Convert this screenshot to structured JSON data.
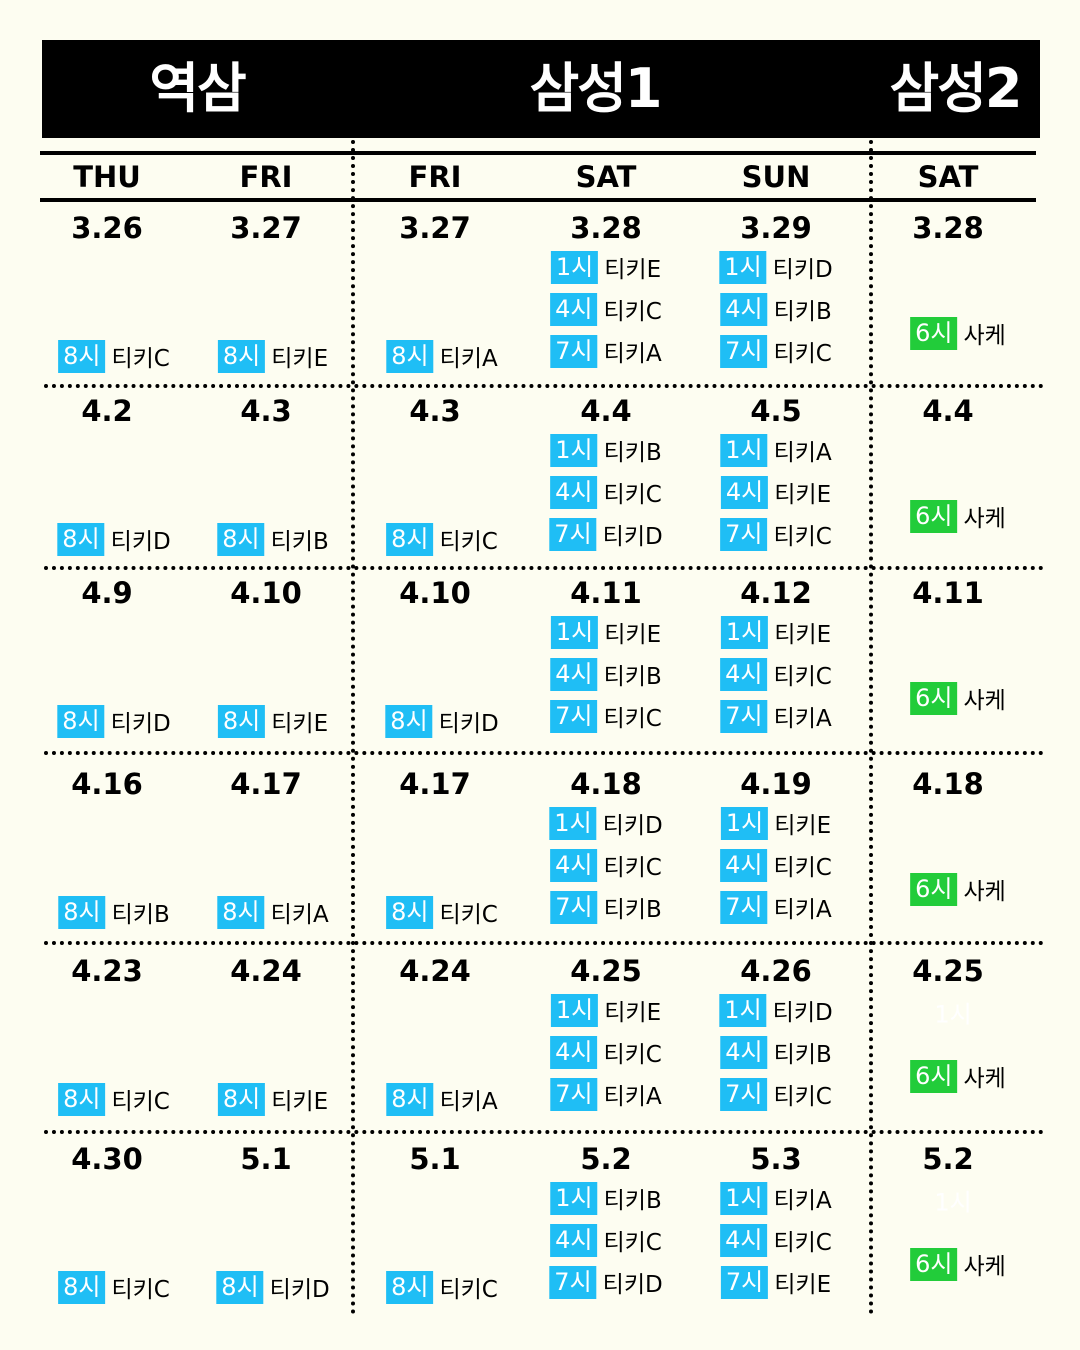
{
  "colors": {
    "badge_blue": "#1fbef5",
    "badge_green": "#22cc3a",
    "background": "#fdfdf1",
    "header": "#000000"
  },
  "venues": [
    "역삼",
    "삼성1",
    "삼성2"
  ],
  "days": [
    "THU",
    "FRI",
    "FRI",
    "SAT",
    "SUN",
    "SAT"
  ],
  "rows": [
    {
      "dates": [
        "3.26",
        "3.27",
        "3.27",
        "3.28",
        "3.29",
        "3.28"
      ],
      "slots": [
        [
          [
            "8시",
            "티키C"
          ]
        ],
        [
          [
            "8시",
            "티키E"
          ]
        ],
        [
          [
            "8시",
            "티키A"
          ]
        ],
        [
          [
            "1시",
            "티키E"
          ],
          [
            "4시",
            "티키C"
          ],
          [
            "7시",
            "티키A"
          ]
        ],
        [
          [
            "1시",
            "티키D"
          ],
          [
            "4시",
            "티키B"
          ],
          [
            "7시",
            "티키C"
          ]
        ],
        [
          [
            "6시",
            "사케"
          ]
        ]
      ]
    },
    {
      "dates": [
        "4.2",
        "4.3",
        "4.3",
        "4.4",
        "4.5",
        "4.4"
      ],
      "slots": [
        [
          [
            "8시",
            "티키D"
          ]
        ],
        [
          [
            "8시",
            "티키B"
          ]
        ],
        [
          [
            "8시",
            "티키C"
          ]
        ],
        [
          [
            "1시",
            "티키B"
          ],
          [
            "4시",
            "티키C"
          ],
          [
            "7시",
            "티키D"
          ]
        ],
        [
          [
            "1시",
            "티키A"
          ],
          [
            "4시",
            "티키E"
          ],
          [
            "7시",
            "티키C"
          ]
        ],
        [
          [
            "6시",
            "사케"
          ]
        ]
      ]
    },
    {
      "dates": [
        "4.9",
        "4.10",
        "4.10",
        "4.11",
        "4.12",
        "4.11"
      ],
      "slots": [
        [
          [
            "8시",
            "티키D"
          ]
        ],
        [
          [
            "8시",
            "티키E"
          ]
        ],
        [
          [
            "8시",
            "티키D"
          ]
        ],
        [
          [
            "1시",
            "티키E"
          ],
          [
            "4시",
            "티키B"
          ],
          [
            "7시",
            "티키C"
          ]
        ],
        [
          [
            "1시",
            "티키E"
          ],
          [
            "4시",
            "티키C"
          ],
          [
            "7시",
            "티키A"
          ]
        ],
        [
          [
            "6시",
            "사케"
          ]
        ]
      ]
    },
    {
      "dates": [
        "4.16",
        "4.17",
        "4.17",
        "4.18",
        "4.19",
        "4.18"
      ],
      "slots": [
        [
          [
            "8시",
            "티키B"
          ]
        ],
        [
          [
            "8시",
            "티키A"
          ]
        ],
        [
          [
            "8시",
            "티키C"
          ]
        ],
        [
          [
            "1시",
            "티키D"
          ],
          [
            "4시",
            "티키C"
          ],
          [
            "7시",
            "티키B"
          ]
        ],
        [
          [
            "1시",
            "티키E"
          ],
          [
            "4시",
            "티키C"
          ],
          [
            "7시",
            "티키A"
          ]
        ],
        [
          [
            "6시",
            "사케"
          ]
        ]
      ]
    },
    {
      "dates": [
        "4.23",
        "4.24",
        "4.24",
        "4.25",
        "4.26",
        "4.25"
      ],
      "slots": [
        [
          [
            "8시",
            "티키C"
          ]
        ],
        [
          [
            "8시",
            "티키E"
          ]
        ],
        [
          [
            "8시",
            "티키A"
          ]
        ],
        [
          [
            "1시",
            "티키E"
          ],
          [
            "4시",
            "티키C"
          ],
          [
            "7시",
            "티키A"
          ]
        ],
        [
          [
            "1시",
            "티키D"
          ],
          [
            "4시",
            "티키B"
          ],
          [
            "7시",
            "티키C"
          ]
        ],
        [
          [
            "6시",
            "사케"
          ]
        ]
      ],
      "ghost": "1시"
    },
    {
      "dates": [
        "4.30",
        "5.1",
        "5.1",
        "5.2",
        "5.3",
        "5.2"
      ],
      "slots": [
        [
          [
            "8시",
            "티키C"
          ]
        ],
        [
          [
            "8시",
            "티키D"
          ]
        ],
        [
          [
            "8시",
            "티키C"
          ]
        ],
        [
          [
            "1시",
            "티키B"
          ],
          [
            "4시",
            "티키C"
          ],
          [
            "7시",
            "티키D"
          ]
        ],
        [
          [
            "1시",
            "티키A"
          ],
          [
            "4시",
            "티키C"
          ],
          [
            "7시",
            "티키E"
          ]
        ],
        [
          [
            "6시",
            "사케"
          ]
        ]
      ],
      "ghost": "1시"
    }
  ]
}
